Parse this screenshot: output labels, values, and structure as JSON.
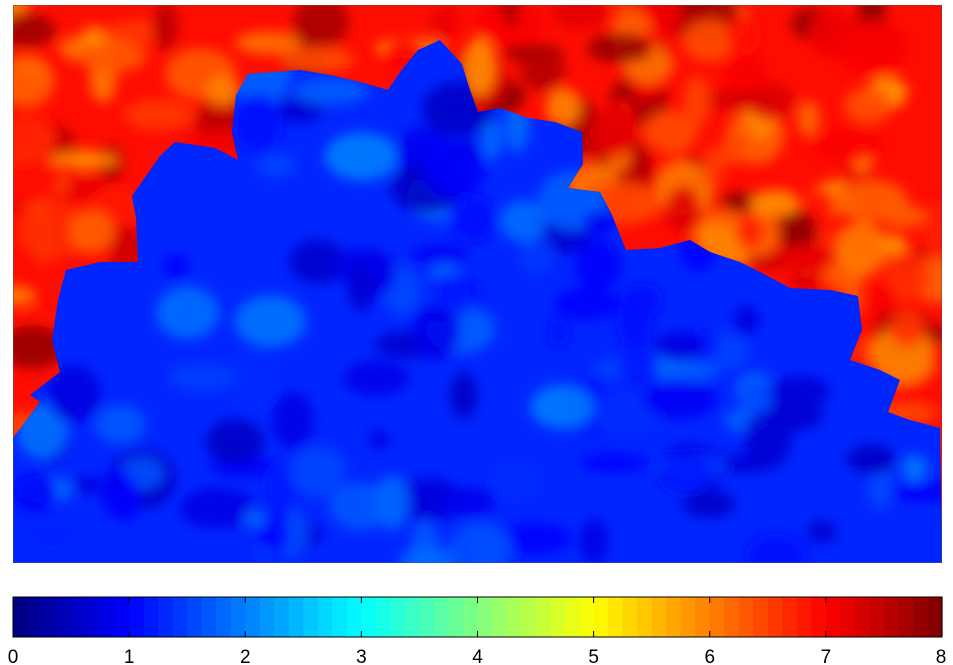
{
  "chart_data": {
    "type": "heatmap",
    "title": "",
    "xlabel": "",
    "ylabel": "",
    "colormap": "jet",
    "colorbar": {
      "orientation": "horizontal",
      "placement": "bottom",
      "range": [
        0,
        8
      ],
      "ticks": [
        0,
        1,
        2,
        3,
        4,
        5,
        6,
        7,
        8
      ],
      "tick_labels": [
        "0",
        "1",
        "2",
        "3",
        "4",
        "5",
        "6",
        "7",
        "8"
      ],
      "levels": 64
    },
    "regions": [
      {
        "name": "blue region",
        "side": "lower",
        "value_range": [
          0.5,
          2.0
        ],
        "typical_value": 1.3
      },
      {
        "name": "red region",
        "side": "upper",
        "value_range": [
          5.8,
          8.0
        ],
        "typical_value": 6.9
      }
    ]
  }
}
